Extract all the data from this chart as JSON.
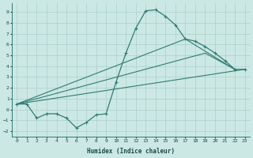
{
  "xlabel": "Humidex (Indice chaleur)",
  "bg_color": "#cce8e4",
  "grid_color": "#aacfcb",
  "line_color": "#2e7d72",
  "xlim": [
    -0.5,
    23.5
  ],
  "ylim": [
    -2.5,
    9.8
  ],
  "xticks": [
    0,
    1,
    2,
    3,
    4,
    5,
    6,
    7,
    8,
    9,
    10,
    11,
    12,
    13,
    14,
    15,
    16,
    17,
    18,
    19,
    20,
    21,
    22,
    23
  ],
  "yticks": [
    -2,
    -1,
    0,
    1,
    2,
    3,
    4,
    5,
    6,
    7,
    8,
    9
  ],
  "main_curve_x": [
    0,
    1,
    2,
    3,
    4,
    5,
    6,
    7,
    8,
    9,
    10,
    11,
    12,
    13,
    14,
    15,
    16,
    17,
    18,
    19,
    20,
    21,
    22,
    23
  ],
  "main_curve_y": [
    0.5,
    0.5,
    -0.8,
    -0.4,
    -0.4,
    -0.8,
    -1.7,
    -1.2,
    -0.5,
    -0.4,
    2.5,
    5.2,
    7.5,
    9.1,
    9.2,
    8.6,
    7.8,
    6.5,
    6.3,
    5.8,
    5.2,
    4.5,
    3.7,
    3.7
  ],
  "line1_x": [
    0,
    23
  ],
  "line1_y": [
    0.5,
    3.7
  ],
  "line2_x": [
    0,
    17,
    22
  ],
  "line2_y": [
    0.5,
    6.5,
    3.7
  ],
  "line3_x": [
    0,
    19,
    22
  ],
  "line3_y": [
    0.5,
    5.2,
    3.7
  ],
  "font_family": "monospace"
}
